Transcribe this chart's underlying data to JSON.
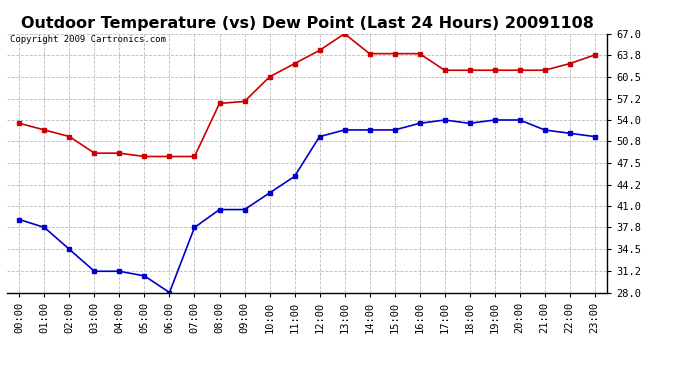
{
  "title": "Outdoor Temperature (vs) Dew Point (Last 24 Hours) 20091108",
  "copyright": "Copyright 2009 Cartronics.com",
  "hours": [
    "00:00",
    "01:00",
    "02:00",
    "03:00",
    "04:00",
    "05:00",
    "06:00",
    "07:00",
    "08:00",
    "09:00",
    "10:00",
    "11:00",
    "12:00",
    "13:00",
    "14:00",
    "15:00",
    "16:00",
    "17:00",
    "18:00",
    "19:00",
    "20:00",
    "21:00",
    "22:00",
    "23:00"
  ],
  "temp_data": [
    39.0,
    37.8,
    34.5,
    31.2,
    31.2,
    30.5,
    28.0,
    37.8,
    40.5,
    40.5,
    43.0,
    45.5,
    51.5,
    52.5,
    52.5,
    52.5,
    53.5,
    54.0,
    53.5,
    54.0,
    54.0,
    52.5,
    52.0,
    51.5
  ],
  "dew_data": [
    53.5,
    52.5,
    51.5,
    49.0,
    49.0,
    48.5,
    48.5,
    48.5,
    56.5,
    56.8,
    60.5,
    62.5,
    64.5,
    67.0,
    64.0,
    64.0,
    64.0,
    61.5,
    61.5,
    61.5,
    61.5,
    61.5,
    62.5,
    63.8
  ],
  "temp_color": "#0000CC",
  "dew_color": "#CC0000",
  "bg_color": "#FFFFFF",
  "grid_color": "#BBBBBB",
  "ylim_min": 28.0,
  "ylim_max": 67.0,
  "yticks": [
    28.0,
    31.2,
    34.5,
    37.8,
    41.0,
    44.2,
    47.5,
    50.8,
    54.0,
    57.2,
    60.5,
    63.8,
    67.0
  ],
  "title_fontsize": 11.5,
  "copyright_fontsize": 6.5,
  "tick_fontsize": 7.5
}
